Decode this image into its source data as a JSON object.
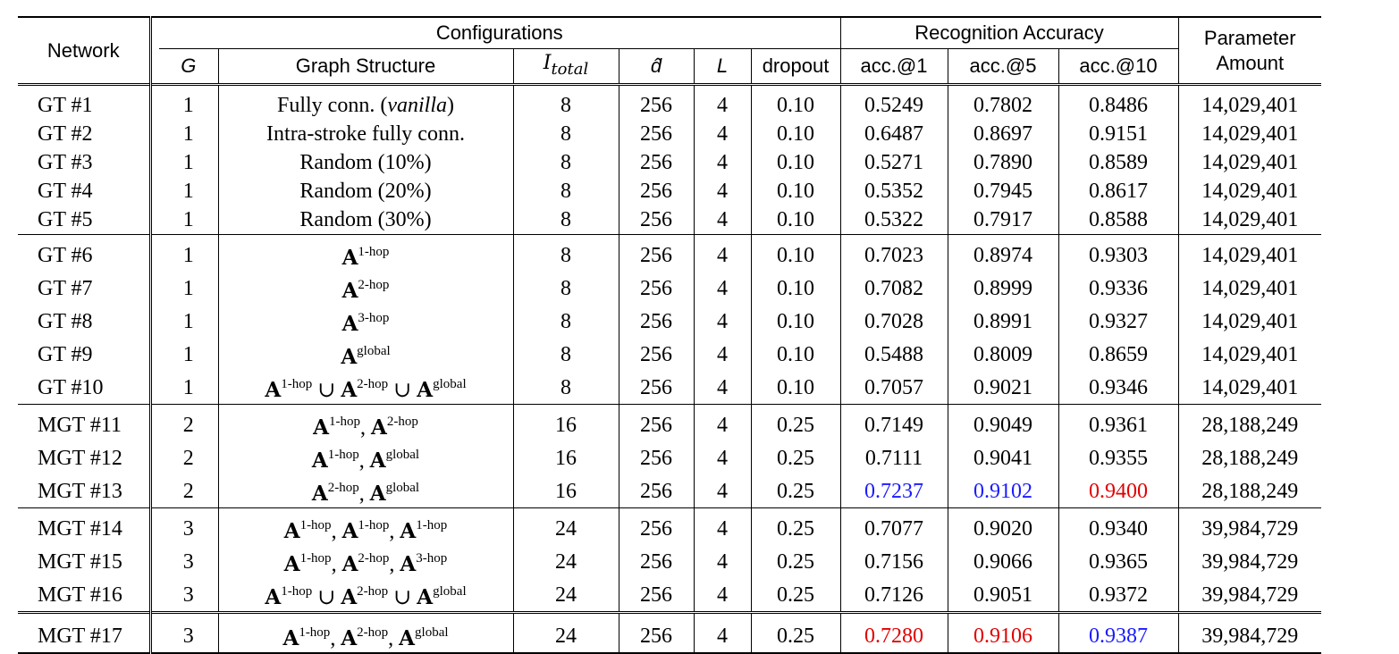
{
  "header": {
    "network": "Network",
    "configurations": "Configurations",
    "recognition_accuracy": "Recognition Accuracy",
    "parameter_amount_1": "Parameter",
    "parameter_amount_2": "Amount",
    "g": "G",
    "graph_structure": "Graph Structure",
    "i_total_base": "I",
    "i_total_sub": "total",
    "d_hat": "d̂",
    "l": "L",
    "dropout": "dropout",
    "acc1": "acc.@1",
    "acc5": "acc.@5",
    "acc10": "acc.@10"
  },
  "rows": [
    {
      "network": "GT #1",
      "g": "1",
      "graph": "Fully conn. (vanilla)",
      "i_total": "8",
      "d": "256",
      "l": "4",
      "dropout": "0.10",
      "acc1": "0.5249",
      "acc5": "0.7802",
      "acc10": "0.8486",
      "params": "14,029,401"
    },
    {
      "network": "GT #2",
      "g": "1",
      "graph": "Intra-stroke fully conn.",
      "i_total": "8",
      "d": "256",
      "l": "4",
      "dropout": "0.10",
      "acc1": "0.6487",
      "acc5": "0.8697",
      "acc10": "0.9151",
      "params": "14,029,401"
    },
    {
      "network": "GT #3",
      "g": "1",
      "graph": "Random (10%)",
      "i_total": "8",
      "d": "256",
      "l": "4",
      "dropout": "0.10",
      "acc1": "0.5271",
      "acc5": "0.7890",
      "acc10": "0.8589",
      "params": "14,029,401"
    },
    {
      "network": "GT #4",
      "g": "1",
      "graph": "Random (20%)",
      "i_total": "8",
      "d": "256",
      "l": "4",
      "dropout": "0.10",
      "acc1": "0.5352",
      "acc5": "0.7945",
      "acc10": "0.8617",
      "params": "14,029,401"
    },
    {
      "network": "GT #5",
      "g": "1",
      "graph": "Random (30%)",
      "i_total": "8",
      "d": "256",
      "l": "4",
      "dropout": "0.10",
      "acc1": "0.5322",
      "acc5": "0.7917",
      "acc10": "0.8588",
      "params": "14,029,401"
    },
    {
      "network": "GT #6",
      "g": "1",
      "graph_terms": [
        "1-hop"
      ],
      "graph_sep": "",
      "i_total": "8",
      "d": "256",
      "l": "4",
      "dropout": "0.10",
      "acc1": "0.7023",
      "acc5": "0.8974",
      "acc10": "0.9303",
      "params": "14,029,401"
    },
    {
      "network": "GT #7",
      "g": "1",
      "graph_terms": [
        "2-hop"
      ],
      "graph_sep": "",
      "i_total": "8",
      "d": "256",
      "l": "4",
      "dropout": "0.10",
      "acc1": "0.7082",
      "acc5": "0.8999",
      "acc10": "0.9336",
      "params": "14,029,401"
    },
    {
      "network": "GT #8",
      "g": "1",
      "graph_terms": [
        "3-hop"
      ],
      "graph_sep": "",
      "i_total": "8",
      "d": "256",
      "l": "4",
      "dropout": "0.10",
      "acc1": "0.7028",
      "acc5": "0.8991",
      "acc10": "0.9327",
      "params": "14,029,401"
    },
    {
      "network": "GT #9",
      "g": "1",
      "graph_terms": [
        "global"
      ],
      "graph_sep": "",
      "i_total": "8",
      "d": "256",
      "l": "4",
      "dropout": "0.10",
      "acc1": "0.5488",
      "acc5": "0.8009",
      "acc10": "0.8659",
      "params": "14,029,401"
    },
    {
      "network": "GT #10",
      "g": "1",
      "graph_terms": [
        "1-hop",
        "2-hop",
        "global"
      ],
      "graph_sep": " ∪ ",
      "i_total": "8",
      "d": "256",
      "l": "4",
      "dropout": "0.10",
      "acc1": "0.7057",
      "acc5": "0.9021",
      "acc10": "0.9346",
      "params": "14,029,401"
    },
    {
      "network": "MGT #11",
      "g": "2",
      "graph_terms": [
        "1-hop",
        "2-hop"
      ],
      "graph_sep": ", ",
      "i_total": "16",
      "d": "256",
      "l": "4",
      "dropout": "0.25",
      "acc1": "0.7149",
      "acc5": "0.9049",
      "acc10": "0.9361",
      "params": "28,188,249"
    },
    {
      "network": "MGT #12",
      "g": "2",
      "graph_terms": [
        "1-hop",
        "global"
      ],
      "graph_sep": ", ",
      "i_total": "16",
      "d": "256",
      "l": "4",
      "dropout": "0.25",
      "acc1": "0.7111",
      "acc5": "0.9041",
      "acc10": "0.9355",
      "params": "28,188,249"
    },
    {
      "network": "MGT #13",
      "g": "2",
      "graph_terms": [
        "2-hop",
        "global"
      ],
      "graph_sep": ", ",
      "i_total": "16",
      "d": "256",
      "l": "4",
      "dropout": "0.25",
      "acc1": "0.7237",
      "acc5": "0.9102",
      "acc10": "0.9400",
      "params": "28,188,249",
      "style": {
        "acc1": "blue",
        "acc5": "blue",
        "acc10": "redb"
      }
    },
    {
      "network": "MGT #14",
      "g": "3",
      "graph_terms": [
        "1-hop",
        "1-hop",
        "1-hop"
      ],
      "graph_sep": ", ",
      "i_total": "24",
      "d": "256",
      "l": "4",
      "dropout": "0.25",
      "acc1": "0.7077",
      "acc5": "0.9020",
      "acc10": "0.9340",
      "params": "39,984,729"
    },
    {
      "network": "MGT #15",
      "g": "3",
      "graph_terms": [
        "1-hop",
        "2-hop",
        "3-hop"
      ],
      "graph_sep": ", ",
      "i_total": "24",
      "d": "256",
      "l": "4",
      "dropout": "0.25",
      "acc1": "0.7156",
      "acc5": "0.9066",
      "acc10": "0.9365",
      "params": "39,984,729"
    },
    {
      "network": "MGT #16",
      "g": "3",
      "graph_terms": [
        "1-hop",
        "2-hop",
        "global"
      ],
      "graph_sep": " ∪ ",
      "i_total": "24",
      "d": "256",
      "l": "4",
      "dropout": "0.25",
      "acc1": "0.7126",
      "acc5": "0.9051",
      "acc10": "0.9372",
      "params": "39,984,729"
    },
    {
      "network": "MGT #17",
      "g": "3",
      "graph_terms": [
        "1-hop",
        "2-hop",
        "global"
      ],
      "graph_sep": ", ",
      "i_total": "24",
      "d": "256",
      "l": "4",
      "dropout": "0.25",
      "acc1": "0.7280",
      "acc5": "0.9106",
      "acc10": "0.9387",
      "params": "39,984,729",
      "style": {
        "acc1": "redb",
        "acc5": "redb",
        "acc10": "blue"
      }
    }
  ],
  "groups": [
    [
      0,
      5
    ],
    [
      5,
      10
    ],
    [
      10,
      13
    ],
    [
      13,
      16
    ],
    [
      16,
      17
    ]
  ],
  "colors": {
    "blue": "#1a1aff",
    "red": "#e00000"
  }
}
